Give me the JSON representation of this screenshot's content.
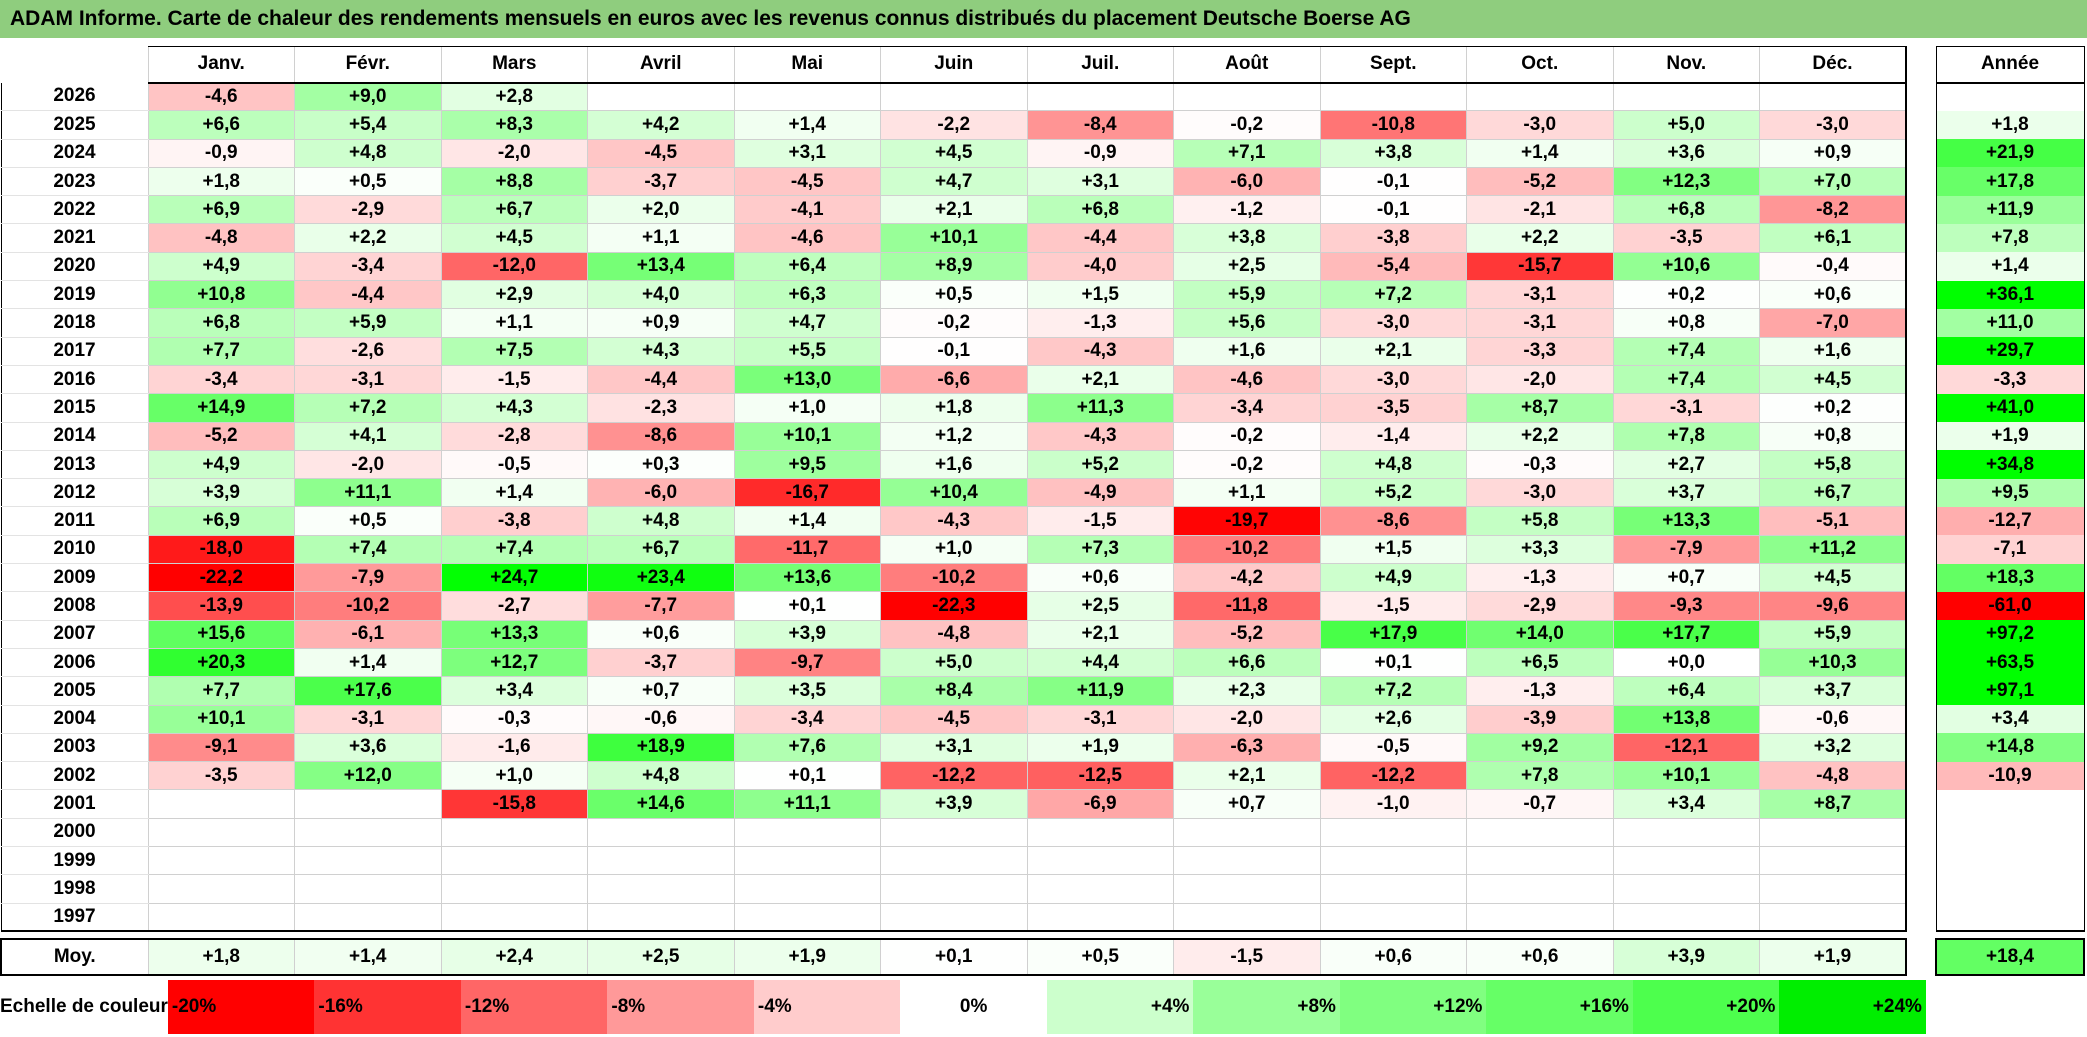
{
  "title": "ADAM Informe. Carte de chaleur des rendements mensuels en euros avec les revenus connus distribués du placement Deutsche Boerse AG",
  "chart_data": {
    "type": "heatmap",
    "title": "ADAM Informe. Carte de chaleur des rendements mensuels en euros avec les revenus connus distribués du placement Deutsche Boerse AG",
    "months": [
      "Janv.",
      "Févr.",
      "Mars",
      "Avril",
      "Mai",
      "Juin",
      "Juil.",
      "Août",
      "Sept.",
      "Oct.",
      "Nov.",
      "Déc."
    ],
    "annual_header": "Année",
    "rows": [
      {
        "year": "2026",
        "values": [
          "-4,6",
          "+9,0",
          "+2,8",
          "",
          "",
          "",
          "",
          "",
          "",
          "",
          "",
          ""
        ],
        "annual": ""
      },
      {
        "year": "2025",
        "values": [
          "+6,6",
          "+5,4",
          "+8,3",
          "+4,2",
          "+1,4",
          "-2,2",
          "-8,4",
          "-0,2",
          "-10,8",
          "-3,0",
          "+5,0",
          "-3,0"
        ],
        "annual": "+1,8"
      },
      {
        "year": "2024",
        "values": [
          "-0,9",
          "+4,8",
          "-2,0",
          "-4,5",
          "+3,1",
          "+4,5",
          "-0,9",
          "+7,1",
          "+3,8",
          "+1,4",
          "+3,6",
          "+0,9"
        ],
        "annual": "+21,9"
      },
      {
        "year": "2023",
        "values": [
          "+1,8",
          "+0,5",
          "+8,8",
          "-3,7",
          "-4,5",
          "+4,7",
          "+3,1",
          "-6,0",
          "-0,1",
          "-5,2",
          "+12,3",
          "+7,0"
        ],
        "annual": "+17,8"
      },
      {
        "year": "2022",
        "values": [
          "+6,9",
          "-2,9",
          "+6,7",
          "+2,0",
          "-4,1",
          "+2,1",
          "+6,8",
          "-1,2",
          "-0,1",
          "-2,1",
          "+6,8",
          "-8,2"
        ],
        "annual": "+11,9"
      },
      {
        "year": "2021",
        "values": [
          "-4,8",
          "+2,2",
          "+4,5",
          "+1,1",
          "-4,6",
          "+10,1",
          "-4,4",
          "+3,8",
          "-3,8",
          "+2,2",
          "-3,5",
          "+6,1"
        ],
        "annual": "+7,8"
      },
      {
        "year": "2020",
        "values": [
          "+4,9",
          "-3,4",
          "-12,0",
          "+13,4",
          "+6,4",
          "+8,9",
          "-4,0",
          "+2,5",
          "-5,4",
          "-15,7",
          "+10,6",
          "-0,4"
        ],
        "annual": "+1,4"
      },
      {
        "year": "2019",
        "values": [
          "+10,8",
          "-4,4",
          "+2,9",
          "+4,0",
          "+6,3",
          "+0,5",
          "+1,5",
          "+5,9",
          "+7,2",
          "-3,1",
          "+0,2",
          "+0,6"
        ],
        "annual": "+36,1"
      },
      {
        "year": "2018",
        "values": [
          "+6,8",
          "+5,9",
          "+1,1",
          "+0,9",
          "+4,7",
          "-0,2",
          "-1,3",
          "+5,6",
          "-3,0",
          "-3,1",
          "+0,8",
          "-7,0"
        ],
        "annual": "+11,0"
      },
      {
        "year": "2017",
        "values": [
          "+7,7",
          "-2,6",
          "+7,5",
          "+4,3",
          "+5,5",
          "-0,1",
          "-4,3",
          "+1,6",
          "+2,1",
          "-3,3",
          "+7,4",
          "+1,6"
        ],
        "annual": "+29,7"
      },
      {
        "year": "2016",
        "values": [
          "-3,4",
          "-3,1",
          "-1,5",
          "-4,4",
          "+13,0",
          "-6,6",
          "+2,1",
          "-4,6",
          "-3,0",
          "-2,0",
          "+7,4",
          "+4,5"
        ],
        "annual": "-3,3"
      },
      {
        "year": "2015",
        "values": [
          "+14,9",
          "+7,2",
          "+4,3",
          "-2,3",
          "+1,0",
          "+1,8",
          "+11,3",
          "-3,4",
          "-3,5",
          "+8,7",
          "-3,1",
          "+0,2"
        ],
        "annual": "+41,0"
      },
      {
        "year": "2014",
        "values": [
          "-5,2",
          "+4,1",
          "-2,8",
          "-8,6",
          "+10,1",
          "+1,2",
          "-4,3",
          "-0,2",
          "-1,4",
          "+2,2",
          "+7,8",
          "+0,8"
        ],
        "annual": "+1,9"
      },
      {
        "year": "2013",
        "values": [
          "+4,9",
          "-2,0",
          "-0,5",
          "+0,3",
          "+9,5",
          "+1,6",
          "+5,2",
          "-0,2",
          "+4,8",
          "-0,3",
          "+2,7",
          "+5,8"
        ],
        "annual": "+34,8"
      },
      {
        "year": "2012",
        "values": [
          "+3,9",
          "+11,1",
          "+1,4",
          "-6,0",
          "-16,7",
          "+10,4",
          "-4,9",
          "+1,1",
          "+5,2",
          "-3,0",
          "+3,7",
          "+6,7"
        ],
        "annual": "+9,5"
      },
      {
        "year": "2011",
        "values": [
          "+6,9",
          "+0,5",
          "-3,8",
          "+4,8",
          "+1,4",
          "-4,3",
          "-1,5",
          "-19,7",
          "-8,6",
          "+5,8",
          "+13,3",
          "-5,1"
        ],
        "annual": "-12,7"
      },
      {
        "year": "2010",
        "values": [
          "-18,0",
          "+7,4",
          "+7,4",
          "+6,7",
          "-11,7",
          "+1,0",
          "+7,3",
          "-10,2",
          "+1,5",
          "+3,3",
          "-7,9",
          "+11,2"
        ],
        "annual": "-7,1"
      },
      {
        "year": "2009",
        "values": [
          "-22,2",
          "-7,9",
          "+24,7",
          "+23,4",
          "+13,6",
          "-10,2",
          "+0,6",
          "-4,2",
          "+4,9",
          "-1,3",
          "+0,7",
          "+4,5"
        ],
        "annual": "+18,3"
      },
      {
        "year": "2008",
        "values": [
          "-13,9",
          "-10,2",
          "-2,7",
          "-7,7",
          "+0,1",
          "-22,3",
          "+2,5",
          "-11,8",
          "-1,5",
          "-2,9",
          "-9,3",
          "-9,6"
        ],
        "annual": "-61,0"
      },
      {
        "year": "2007",
        "values": [
          "+15,6",
          "-6,1",
          "+13,3",
          "+0,6",
          "+3,9",
          "-4,8",
          "+2,1",
          "-5,2",
          "+17,9",
          "+14,0",
          "+17,7",
          "+5,9"
        ],
        "annual": "+97,2"
      },
      {
        "year": "2006",
        "values": [
          "+20,3",
          "+1,4",
          "+12,7",
          "-3,7",
          "-9,7",
          "+5,0",
          "+4,4",
          "+6,6",
          "+0,1",
          "+6,5",
          "+0,0",
          "+10,3"
        ],
        "annual": "+63,5"
      },
      {
        "year": "2005",
        "values": [
          "+7,7",
          "+17,6",
          "+3,4",
          "+0,7",
          "+3,5",
          "+8,4",
          "+11,9",
          "+2,3",
          "+7,2",
          "-1,3",
          "+6,4",
          "+3,7"
        ],
        "annual": "+97,1"
      },
      {
        "year": "2004",
        "values": [
          "+10,1",
          "-3,1",
          "-0,3",
          "-0,6",
          "-3,4",
          "-4,5",
          "-3,1",
          "-2,0",
          "+2,6",
          "-3,9",
          "+13,8",
          "-0,6"
        ],
        "annual": "+3,4"
      },
      {
        "year": "2003",
        "values": [
          "-9,1",
          "+3,6",
          "-1,6",
          "+18,9",
          "+7,6",
          "+3,1",
          "+1,9",
          "-6,3",
          "-0,5",
          "+9,2",
          "-12,1",
          "+3,2"
        ],
        "annual": "+14,8"
      },
      {
        "year": "2002",
        "values": [
          "-3,5",
          "+12,0",
          "+1,0",
          "+4,8",
          "+0,1",
          "-12,2",
          "-12,5",
          "+2,1",
          "-12,2",
          "+7,8",
          "+10,1",
          "-4,8"
        ],
        "annual": "-10,9"
      },
      {
        "year": "2001",
        "values": [
          "",
          "",
          "-15,8",
          "+14,6",
          "+11,1",
          "+3,9",
          "-6,9",
          "+0,7",
          "-1,0",
          "-0,7",
          "+3,4",
          "+8,7"
        ],
        "annual": ""
      },
      {
        "year": "2000",
        "values": [
          "",
          "",
          "",
          "",
          "",
          "",
          "",
          "",
          "",
          "",
          "",
          ""
        ],
        "annual": ""
      },
      {
        "year": "1999",
        "values": [
          "",
          "",
          "",
          "",
          "",
          "",
          "",
          "",
          "",
          "",
          "",
          ""
        ],
        "annual": ""
      },
      {
        "year": "1998",
        "values": [
          "",
          "",
          "",
          "",
          "",
          "",
          "",
          "",
          "",
          "",
          "",
          ""
        ],
        "annual": ""
      },
      {
        "year": "1997",
        "values": [
          "",
          "",
          "",
          "",
          "",
          "",
          "",
          "",
          "",
          "",
          "",
          ""
        ],
        "annual": ""
      }
    ],
    "average": {
      "label": "Moy.",
      "values": [
        "+1,8",
        "+1,4",
        "+2,4",
        "+2,5",
        "+1,9",
        "+0,1",
        "+0,5",
        "-1,5",
        "+0,6",
        "+0,6",
        "+3,9",
        "+1,9"
      ],
      "annual": "+18,4"
    },
    "color_scale": {
      "label": "Echelle de couleur",
      "stops": [
        {
          "label": "-20%",
          "value": -20,
          "color": "#ff0000"
        },
        {
          "label": "-16%",
          "value": -16,
          "color": "#ff3333"
        },
        {
          "label": "-12%",
          "value": -12,
          "color": "#ff6666"
        },
        {
          "label": "-8%",
          "value": -8,
          "color": "#ff9999"
        },
        {
          "label": "-4%",
          "value": -4,
          "color": "#ffcccc"
        },
        {
          "label": "0%",
          "value": 0,
          "color": "#ffffff"
        },
        {
          "label": "+4%",
          "value": 4,
          "color": "#ccffcc"
        },
        {
          "label": "+8%",
          "value": 8,
          "color": "#99ff99"
        },
        {
          "label": "+12%",
          "value": 12,
          "color": "#80ff80"
        },
        {
          "label": "+16%",
          "value": 16,
          "color": "#66ff66"
        },
        {
          "label": "+20%",
          "value": 20,
          "color": "#4dff4d"
        },
        {
          "label": "+24%",
          "value": 24,
          "color": "#00ee00"
        }
      ]
    }
  }
}
